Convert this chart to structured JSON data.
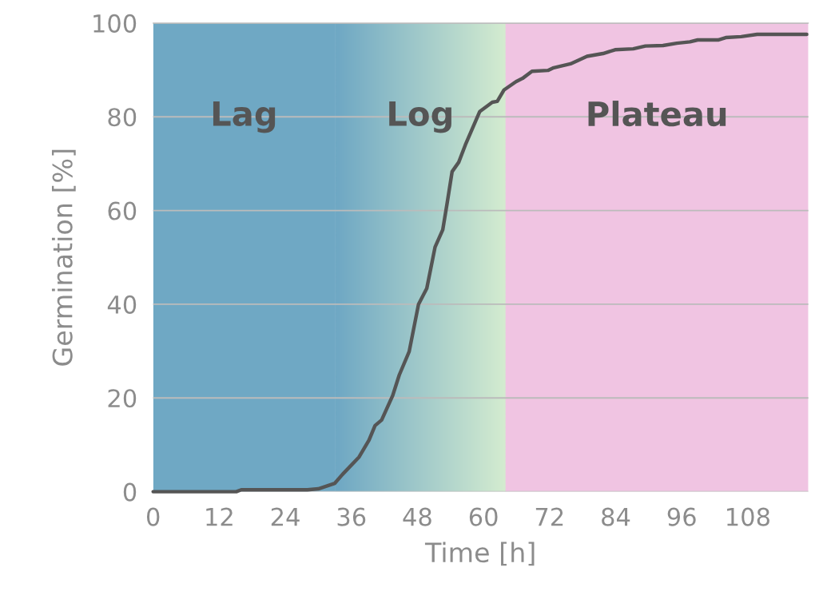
{
  "chart_data": {
    "type": "line",
    "xlabel": "Time [h]",
    "ylabel": "Germination [%]",
    "x": [
      0,
      15.1,
      16,
      28,
      30,
      33,
      34.4,
      37.4,
      39.2,
      40.3,
      41.5,
      43.5,
      44.7,
      46.5,
      48.2,
      49.7,
      51.2,
      52.6,
      53.4,
      54.3,
      55.5,
      56.7,
      59.3,
      61.6,
      62.5,
      63.7,
      65.9,
      67.1,
      68.8,
      71.7,
      72.6,
      75.8,
      78.8,
      81.7,
      83.9,
      87.2,
      89.4,
      92.6,
      95.1,
      97.5,
      98.9,
      102.6,
      104,
      106.8,
      109.7,
      118.7
    ],
    "series": [
      {
        "color": "#555555",
        "values": [
          0,
          0,
          0.4,
          0.4,
          0.6,
          1.8,
          3.7,
          7.4,
          11,
          14.1,
          15.3,
          20.5,
          24.9,
          29.9,
          40,
          43.4,
          52.2,
          55.9,
          61.6,
          68.3,
          70.3,
          74,
          81.1,
          83.1,
          83.3,
          85.7,
          87.5,
          88.2,
          89.7,
          89.9,
          90.4,
          91.3,
          92.9,
          93.5,
          94.3,
          94.5,
          95.1,
          95.2,
          95.7,
          96,
          96.4,
          96.4,
          96.9,
          97.1,
          97.6,
          97.6
        ]
      }
    ],
    "xlim": [
      0,
      119
    ],
    "xticks": [
      0,
      12,
      24,
      36,
      48,
      60,
      72,
      84,
      96,
      108
    ],
    "ylim": [
      0,
      100
    ],
    "yticks": [
      0,
      20,
      40,
      60,
      80,
      100
    ],
    "grid": "y",
    "marker": "none",
    "line_style": "solid",
    "legend": false,
    "bands": [
      {
        "axis": "x",
        "from": 0,
        "to": 33,
        "label": "Lag",
        "color": "#6fa8c4"
      },
      {
        "axis": "x",
        "from": 33,
        "to": 64,
        "label": "Log",
        "color": "#d4ecd0"
      },
      {
        "axis": "x",
        "from": 64,
        "to": 119,
        "label": "Plateau",
        "color": "#f0c4e2"
      }
    ]
  }
}
